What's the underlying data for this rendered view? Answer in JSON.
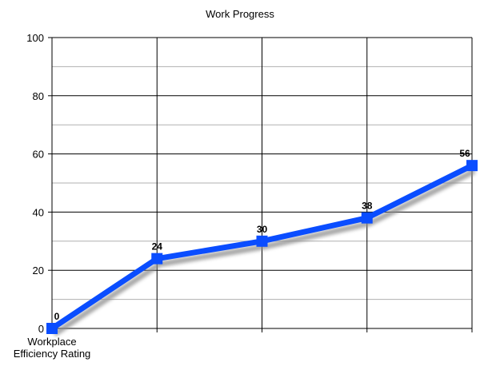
{
  "chart_data": {
    "type": "line",
    "title": "Work Progress",
    "categories": [
      "Workplace\nEfficiency Rating",
      "",
      "",
      "",
      ""
    ],
    "series": [
      {
        "name": "Workplace Efficiency Rating",
        "values": [
          0,
          24,
          30,
          38,
          56
        ]
      }
    ],
    "data_labels": [
      "0",
      "24",
      "30",
      "38",
      "56"
    ],
    "y_ticks": [
      0,
      20,
      40,
      60,
      80,
      100
    ],
    "ylim": [
      0,
      100
    ],
    "xlabel": "",
    "ylabel": "",
    "grid": true,
    "line_color": "#0a4dff"
  }
}
